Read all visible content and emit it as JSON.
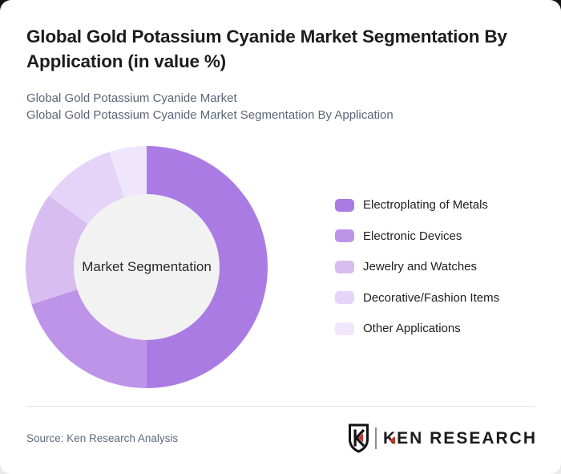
{
  "page": {
    "background_dark": "#141414",
    "card_bg": "#ffffff"
  },
  "header": {
    "title": "Global Gold Potassium Cyanide Market Segmentation By Application (in value %)",
    "subtitle_line1": "Global Gold Potassium Cyanide Market",
    "subtitle_line2": "Global Gold Potassium Cyanide Market Segmentation By Application"
  },
  "chart_data": {
    "type": "pie",
    "variant": "donut",
    "title": "Global Gold Potassium Cyanide Market Segmentation By Application (in value %)",
    "unit": "value %",
    "center_label": "Market Segmentation",
    "categories": [
      "Electroplating of Metals",
      "Electronic Devices",
      "Jewelry and Watches",
      "Decorative/Fashion Items",
      "Other Applications"
    ],
    "values": [
      50,
      20,
      15,
      10,
      5
    ],
    "colors": [
      "#aa7ce3",
      "#bd94e8",
      "#d8bdf1",
      "#e6d4f8",
      "#f0e6fc"
    ],
    "start_angle_deg": 0,
    "direction": "clockwise",
    "legend_position": "right",
    "hole_color": "#f2f2f2"
  },
  "footer": {
    "source": "Source: Ken Research Analysis",
    "logo": {
      "text": "KEN RESEARCH",
      "accent_color": "#c5352c",
      "shield_icon": "ken-research-shield"
    }
  }
}
